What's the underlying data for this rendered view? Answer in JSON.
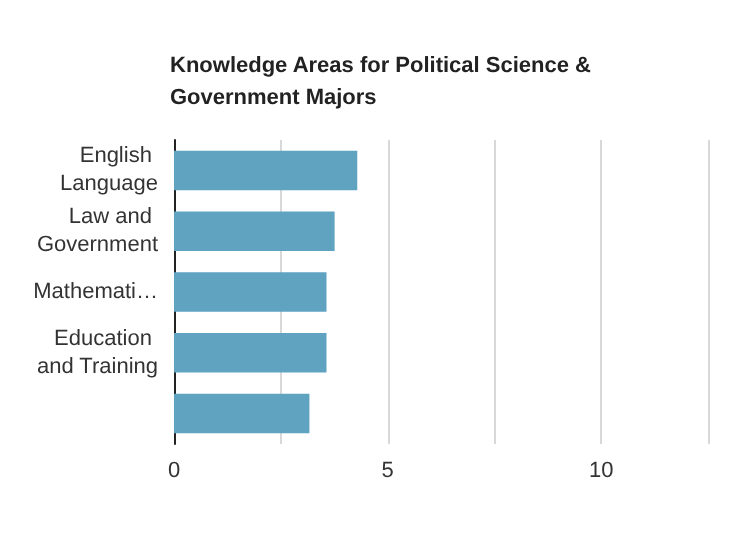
{
  "chart_data": {
    "type": "bar",
    "orientation": "horizontal",
    "title": "Knowledge Areas for Political Science & Government Majors",
    "categories": [
      "English Language",
      "Law and Government",
      "Mathemati…",
      "Education and Training",
      null
    ],
    "values": [
      4.29,
      3.76,
      3.57,
      3.57,
      3.17
    ],
    "color": "#5fa3c1",
    "xlim": [
      0,
      12.5
    ],
    "xticks": [
      0,
      {
        "value": 2.5,
        "label": null
      },
      5,
      {
        "value": 7.5,
        "label": null
      },
      10,
      {
        "value": 12.5,
        "label": null
      }
    ],
    "grid": "x"
  }
}
